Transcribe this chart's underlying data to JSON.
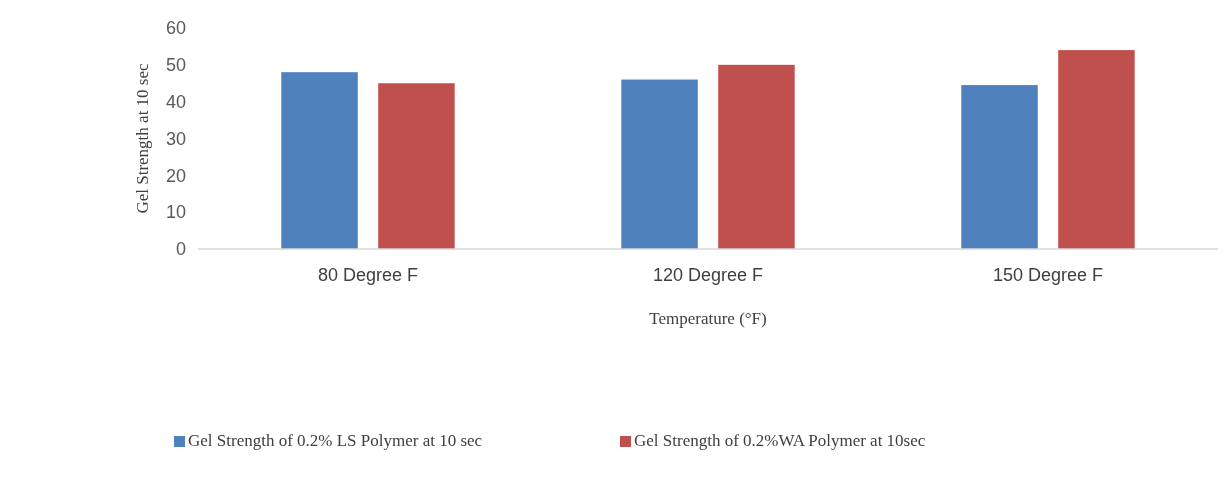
{
  "chart_data": {
    "type": "bar",
    "xlabel": "Temperature (°F)",
    "ylabel": "Gel Strength at 10 sec",
    "categories": [
      "80 Degree F",
      "120 Degree F",
      "150 Degree F"
    ],
    "series": [
      {
        "name": "Gel Strength of 0.2% LS Polymer at 10 sec",
        "color": "#4f81bd",
        "values": [
          48,
          46,
          44.5
        ]
      },
      {
        "name": "Gel Strength of 0.2%WA Polymer at 10sec",
        "color": "#c0504d",
        "values": [
          45,
          50,
          54
        ]
      }
    ],
    "ylim": [
      0,
      60
    ],
    "yticks": [
      0,
      10,
      20,
      30,
      40,
      50,
      60
    ],
    "legend": "bottom"
  }
}
